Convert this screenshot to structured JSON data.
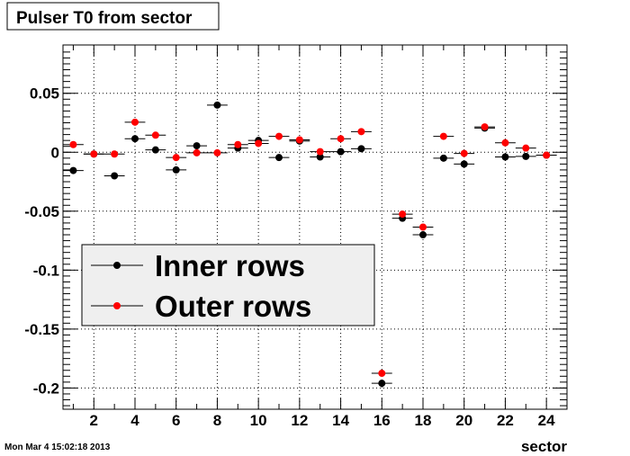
{
  "chart_data": {
    "type": "scatter",
    "title": "Pulser T0 from sector",
    "xlabel": "sector",
    "ylabel": "",
    "xlim": [
      0.5,
      25
    ],
    "ylim": [
      -0.218,
      0.091
    ],
    "x_ticks": [
      2,
      4,
      6,
      8,
      10,
      12,
      14,
      16,
      18,
      20,
      22,
      24
    ],
    "y_ticks": [
      0.05,
      0,
      -0.05,
      -0.1,
      -0.15,
      -0.2
    ],
    "y_tick_labels": [
      "0.05",
      "0",
      "-0.05",
      "-0.1",
      "-0.15",
      "-0.2"
    ],
    "grid": true,
    "legend_position": "middle-left",
    "x": [
      1,
      2,
      3,
      4,
      5,
      6,
      7,
      8,
      9,
      10,
      11,
      12,
      13,
      14,
      15,
      16,
      17,
      18,
      19,
      20,
      21,
      22,
      23,
      24
    ],
    "series": [
      {
        "name": "Inner rows",
        "color": "#000000",
        "values": [
          -0.0155,
          -0.0015,
          -0.02,
          0.0115,
          0.002,
          -0.015,
          0.0055,
          0.04,
          0.0035,
          0.01,
          -0.0045,
          0.0095,
          -0.004,
          0.0005,
          0.003,
          -0.196,
          -0.056,
          -0.07,
          -0.005,
          -0.01,
          0.0205,
          -0.004,
          -0.0035,
          -0.0025
        ]
      },
      {
        "name": "Outer rows",
        "color": "#ff0000",
        "values": [
          0.0065,
          -0.0015,
          -0.0015,
          0.0255,
          0.0145,
          -0.0045,
          -0.0005,
          -0.0005,
          0.0065,
          0.0075,
          0.0135,
          0.0105,
          0.0005,
          0.0115,
          0.0175,
          -0.1875,
          -0.0525,
          -0.0635,
          0.0135,
          -0.001,
          0.0215,
          0.008,
          0.0035,
          -0.0025
        ]
      }
    ]
  },
  "timestamp": "Mon Mar  4 15:02:18 2013"
}
